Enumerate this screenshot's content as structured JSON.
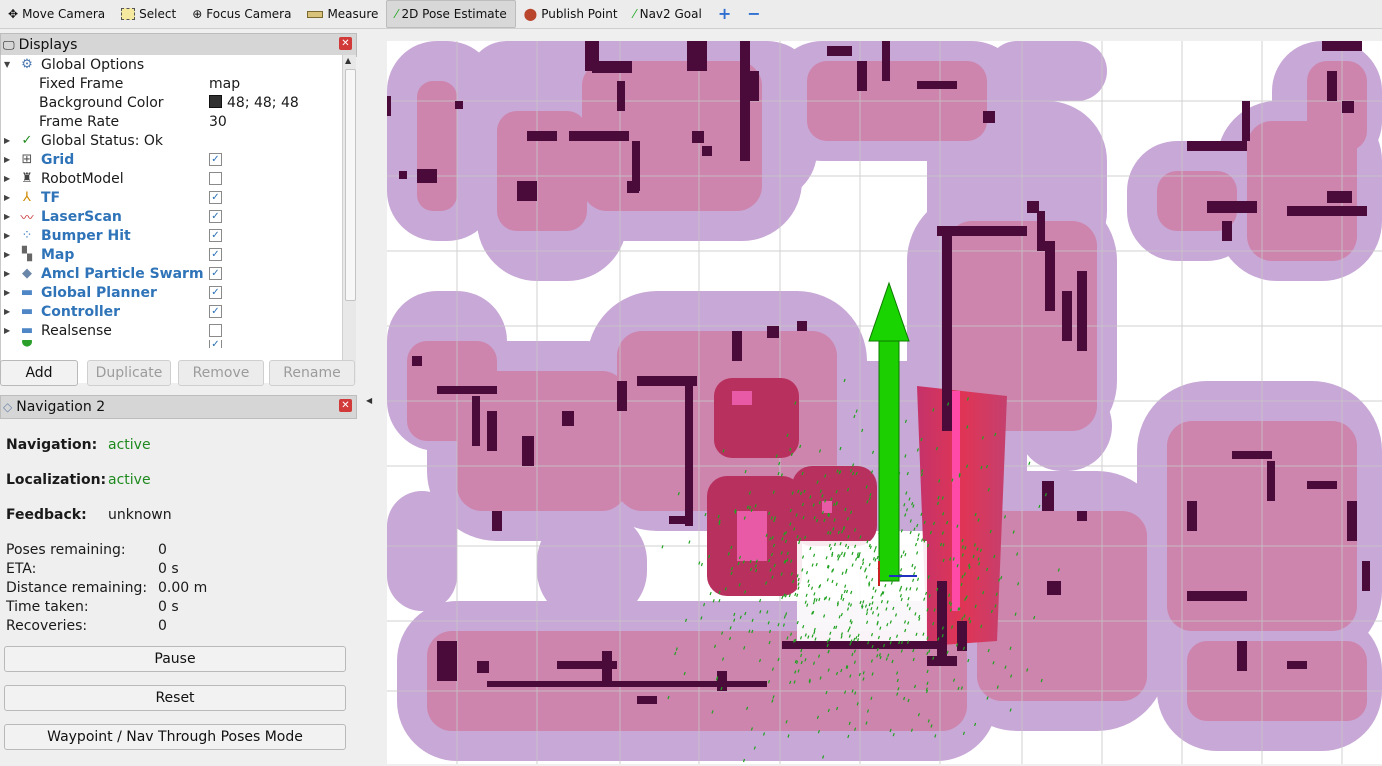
{
  "toolbar": {
    "tools": [
      {
        "label": "Move Camera",
        "icon": "move-camera-icon"
      },
      {
        "label": "Select",
        "icon": "select-icon"
      },
      {
        "label": "Focus Camera",
        "icon": "focus-camera-icon"
      },
      {
        "label": "Measure",
        "icon": "measure-icon"
      },
      {
        "label": "2D Pose Estimate",
        "icon": "pose-estimate-icon",
        "active": true
      },
      {
        "label": "Publish Point",
        "icon": "publish-point-icon"
      },
      {
        "label": "Nav2 Goal",
        "icon": "nav2-goal-icon"
      }
    ]
  },
  "displays": {
    "title": "Displays",
    "global_options": "Global Options",
    "fixed_frame_label": "Fixed Frame",
    "fixed_frame_value": "map",
    "bg_color_label": "Background Color",
    "bg_color_value": "48; 48; 48",
    "frame_rate_label": "Frame Rate",
    "frame_rate_value": "30",
    "global_status": "Global Status: Ok",
    "items": [
      {
        "label": "Grid",
        "checked": true,
        "icon": "grid-icon"
      },
      {
        "label": "RobotModel",
        "checked": false,
        "icon": "robot-model-icon"
      },
      {
        "label": "TF",
        "checked": true,
        "icon": "tf-icon"
      },
      {
        "label": "LaserScan",
        "checked": true,
        "icon": "laserscan-icon"
      },
      {
        "label": "Bumper Hit",
        "checked": true,
        "icon": "bumper-hit-icon"
      },
      {
        "label": "Map",
        "checked": true,
        "icon": "map-icon"
      },
      {
        "label": "Amcl Particle Swarm",
        "checked": true,
        "icon": "particle-swarm-icon"
      },
      {
        "label": "Global Planner",
        "checked": true,
        "icon": "folder-icon"
      },
      {
        "label": "Controller",
        "checked": true,
        "icon": "folder-icon"
      },
      {
        "label": "Realsense",
        "checked": false,
        "icon": "folder-icon"
      }
    ],
    "buttons": {
      "add": "Add",
      "duplicate": "Duplicate",
      "remove": "Remove",
      "rename": "Rename"
    }
  },
  "navigation": {
    "title": "Navigation 2",
    "navigation_label": "Navigation:",
    "navigation_value": "active",
    "localization_label": "Localization:",
    "localization_value": "active",
    "feedback_label": "Feedback:",
    "feedback_value": "unknown",
    "poses_label": "Poses remaining:",
    "poses_value": "0",
    "eta_label": "ETA:",
    "eta_value": "0 s",
    "distance_label": "Distance remaining:",
    "distance_value": "0.00 m",
    "time_label": "Time taken:",
    "time_value": "0 s",
    "recoveries_label": "Recoveries:",
    "recoveries_value": "0",
    "pause_label": "Pause",
    "reset_label": "Reset",
    "mode_label": "Waypoint / Nav Through Poses Mode"
  },
  "colors": {
    "costmap": "#c6a3d4",
    "obstacle": "#4a0b3a",
    "inflation": "#c9386a",
    "arrow": "#19d400",
    "particles": "#21a221"
  }
}
